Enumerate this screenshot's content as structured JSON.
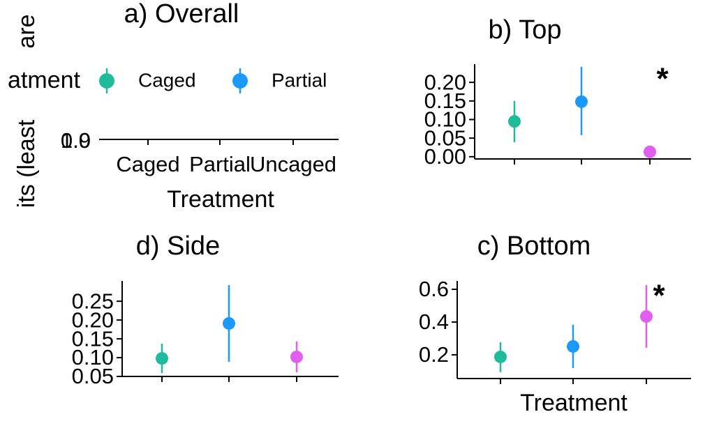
{
  "chart_data": [
    {
      "type": "pointrange",
      "title": "a) Overall",
      "ylabel_fragments": [
        "are",
        "its (least"
      ],
      "x_label": "Treatment",
      "categories": [
        "Caged",
        "Partial",
        "Uncaged"
      ],
      "ytick_labels": [
        "1.0",
        "0.9"
      ],
      "legend": {
        "title": "atment",
        "entries": [
          {
            "name": "Caged",
            "color": "#1fbc9c"
          },
          {
            "name": "Partial",
            "color": "#1a98fc"
          }
        ]
      }
    },
    {
      "type": "pointrange",
      "title": "b) Top",
      "categories": [
        null,
        null,
        null
      ],
      "values": [
        0.095,
        0.148,
        0.013
      ],
      "lower": [
        0.039,
        0.058,
        null
      ],
      "upper": [
        0.15,
        0.242,
        null
      ],
      "colors": [
        "#1fbc9c",
        "#1a98fc",
        "#e15ff0"
      ],
      "annotation": "*",
      "ylim": [
        -0.006,
        0.249
      ],
      "yticks": [
        {
          "value": 0,
          "label": "0.00"
        },
        0.05,
        {
          "value": 0.1,
          "label": "0.10"
        },
        0.15,
        {
          "value": 0.2,
          "label": "0.20"
        }
      ]
    },
    {
      "type": "pointrange",
      "title": "d) Side",
      "categories": [
        null,
        null,
        null
      ],
      "values": [
        0.098,
        0.191,
        0.102
      ],
      "lower": [
        0.059,
        0.089,
        0.061
      ],
      "upper": [
        0.137,
        0.293,
        0.143
      ],
      "colors": [
        "#1fbc9c",
        "#1a98fc",
        "#e15ff0"
      ],
      "ylim": [
        0.05,
        0.304
      ],
      "yticks": [
        0.05,
        {
          "value": 0.1,
          "label": "0.10"
        },
        0.15,
        {
          "value": 0.2,
          "label": "0.20"
        },
        0.25
      ]
    },
    {
      "type": "pointrange",
      "title": "c) Bottom",
      "x_label": "Treatment",
      "categories": [
        null,
        null,
        null
      ],
      "values": [
        0.187,
        0.251,
        0.434
      ],
      "lower": [
        0.094,
        0.119,
        0.243
      ],
      "upper": [
        0.277,
        0.383,
        0.626
      ],
      "colors": [
        "#1fbc9c",
        "#1a98fc",
        "#e15ff0"
      ],
      "annotation": "*",
      "ylim": [
        0.055,
        0.651
      ],
      "yticks": [
        0.2,
        0.4,
        0.6
      ]
    }
  ]
}
